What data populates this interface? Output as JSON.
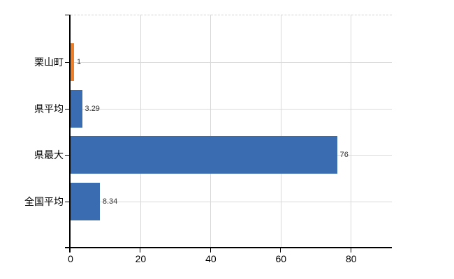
{
  "chart_data": {
    "type": "bar",
    "orientation": "horizontal",
    "title": "",
    "xlabel": "",
    "ylabel": "",
    "categories": [
      "栗山町",
      "県平均",
      "県最大",
      "全国平均"
    ],
    "values": [
      1,
      3.29,
      76,
      8.34
    ],
    "value_labels": [
      "1",
      "3.29",
      "76",
      "8.34"
    ],
    "bar_colors": [
      "#EC7F2B",
      "#3A6CB1",
      "#3A6CB1",
      "#3A6CB1"
    ],
    "x_ticks": [
      0,
      20,
      40,
      60,
      80
    ],
    "x_tick_labels": [
      "0",
      "20",
      "40",
      "60",
      "80"
    ],
    "xlim": [
      0,
      91.6
    ],
    "grid": true,
    "legend": "none",
    "colors": {
      "background": "#FFFFFF",
      "grid": "#D9D9D9",
      "top_border_dashed": "#D2D0D2",
      "axis": "#000000",
      "tick_text": "#000000",
      "value_text": "#333333"
    }
  }
}
